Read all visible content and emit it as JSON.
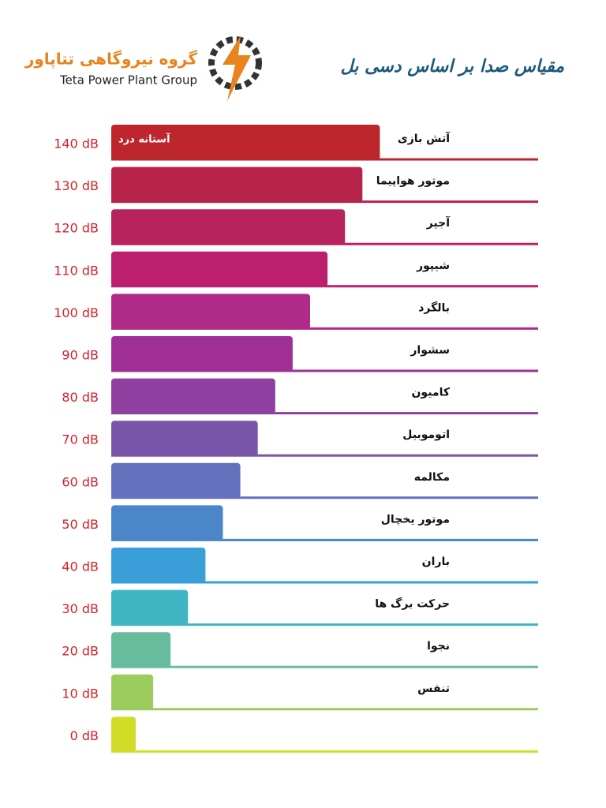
{
  "chart_data": {
    "type": "bar",
    "orientation": "horizontal",
    "title": "مقیاس صدا بر اساس دسی بل",
    "logo_title": "گروه نیروگاهی تتاپاور",
    "logo_subtitle": "Teta Power Plant Group",
    "annotation": "آستانه درد",
    "categories": [
      "آتش بازی",
      "موتور هواپیما",
      "آجیر",
      "شیپور",
      "بالگرد",
      "سشوار",
      "کامیون",
      "اتوموبیل",
      "مکالمه",
      "موتور یخچال",
      "باران",
      "حرکت برگ ها",
      "نجوا",
      "تنفس",
      null
    ],
    "values": [
      140,
      130,
      120,
      110,
      100,
      90,
      80,
      70,
      60,
      50,
      40,
      30,
      20,
      10,
      0
    ],
    "value_labels": [
      "140 dB",
      "130 dB",
      "120 dB",
      "110 dB",
      "100 dB",
      "90 dB",
      "80 dB",
      "70 dB",
      "60 dB",
      "50 dB",
      "40 dB",
      "30 dB",
      "20 dB",
      "10 dB",
      "0 dB"
    ],
    "colors": [
      "#be262e",
      "#b8234a",
      "#b8235e",
      "#bb1f6e",
      "#b02a8a",
      "#a02f96",
      "#8e3fa0",
      "#7a56aa",
      "#6270bd",
      "#4a86c8",
      "#3a9fd8",
      "#40b5c3",
      "#68bc9e",
      "#9ccc5e",
      "#d2dd2a"
    ]
  }
}
